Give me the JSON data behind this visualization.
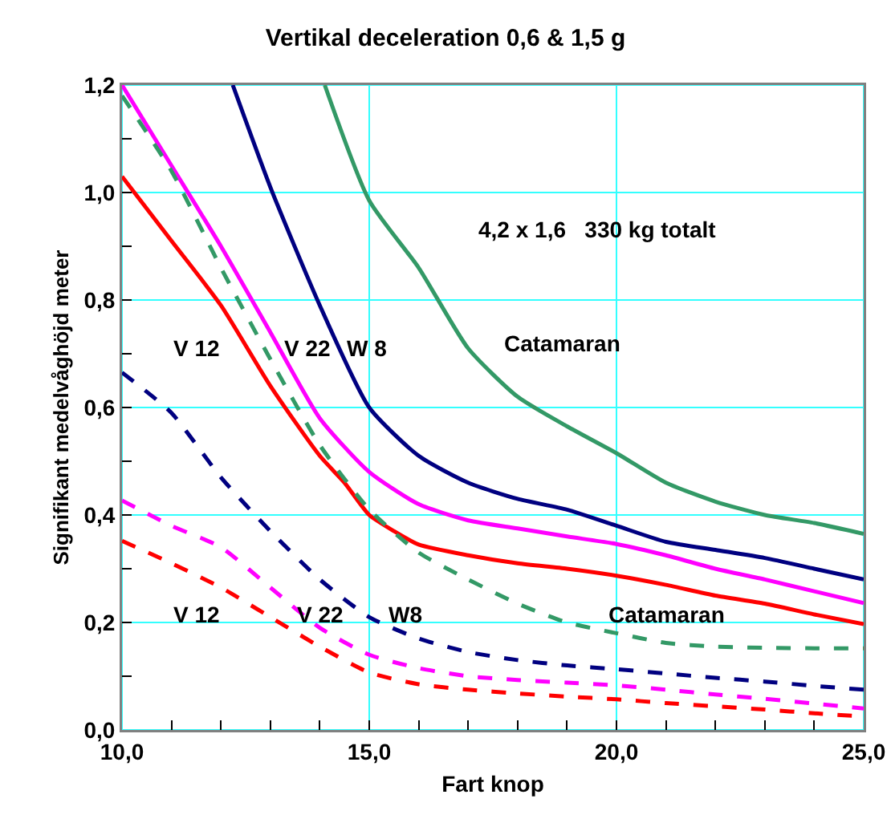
{
  "chart_data": {
    "type": "line",
    "title": "Vertikal deceleration 0,6 & 1,5 g",
    "xlabel": "Fart knop",
    "ylabel": "Signifikant medelvåghöjd meter",
    "xlim": [
      10,
      25
    ],
    "ylim": [
      0,
      1.2
    ],
    "xticks": [
      {
        "value": 10,
        "label": "10,0"
      },
      {
        "value": 11,
        "label": null
      },
      {
        "value": 12,
        "label": null
      },
      {
        "value": 13,
        "label": null
      },
      {
        "value": 14,
        "label": null
      },
      {
        "value": 15,
        "label": "15,0"
      },
      {
        "value": 16,
        "label": null
      },
      {
        "value": 17,
        "label": null
      },
      {
        "value": 18,
        "label": null
      },
      {
        "value": 19,
        "label": null
      },
      {
        "value": 20,
        "label": "20,0"
      },
      {
        "value": 21,
        "label": null
      },
      {
        "value": 22,
        "label": null
      },
      {
        "value": 23,
        "label": null
      },
      {
        "value": 24,
        "label": null
      },
      {
        "value": 25,
        "label": "25,0"
      }
    ],
    "yticks": [
      {
        "value": 0,
        "label": "0,0"
      },
      {
        "value": 0.1,
        "label": null
      },
      {
        "value": 0.2,
        "label": "0,2"
      },
      {
        "value": 0.3,
        "label": null
      },
      {
        "value": 0.4,
        "label": "0,4"
      },
      {
        "value": 0.5,
        "label": null
      },
      {
        "value": 0.6,
        "label": "0,6"
      },
      {
        "value": 0.7,
        "label": null
      },
      {
        "value": 0.8,
        "label": "0,8"
      },
      {
        "value": 0.9,
        "label": null
      },
      {
        "value": 1,
        "label": "1,0"
      },
      {
        "value": 1.1,
        "label": null
      },
      {
        "value": 1.2,
        "label": "1,2"
      }
    ],
    "grid": true,
    "marker": "none",
    "series": [
      {
        "color": "#ff0000",
        "line_style": "solid",
        "x": [
          10,
          11,
          12,
          13,
          14,
          14.5,
          15,
          15.5,
          16,
          17,
          18,
          19,
          20,
          21,
          22,
          23,
          24,
          25
        ],
        "values": [
          1.03,
          0.91,
          0.79,
          0.64,
          0.51,
          0.46,
          0.4,
          0.37,
          0.345,
          0.325,
          0.31,
          0.3,
          0.287,
          0.27,
          0.25,
          0.235,
          0.215,
          0.197
        ]
      },
      {
        "color": "#ff00ff",
        "line_style": "solid",
        "x": [
          10,
          11,
          12,
          13,
          14,
          15,
          16,
          17,
          18,
          19,
          20,
          21,
          22,
          23,
          24,
          25
        ],
        "values": [
          1.2,
          1.05,
          0.9,
          0.74,
          0.58,
          0.48,
          0.42,
          0.39,
          0.375,
          0.36,
          0.346,
          0.325,
          0.3,
          0.28,
          0.258,
          0.236
        ]
      },
      {
        "color": "#000080",
        "line_style": "solid",
        "x": [
          12.24,
          13,
          14,
          15,
          16,
          17,
          18,
          19,
          20,
          21,
          22,
          23,
          24,
          25
        ],
        "values": [
          1.2,
          1.01,
          0.79,
          0.6,
          0.51,
          0.46,
          0.43,
          0.41,
          0.38,
          0.35,
          0.335,
          0.32,
          0.3,
          0.28
        ]
      },
      {
        "color": "#339966",
        "line_style": "solid",
        "x": [
          14.1,
          15,
          16,
          17,
          18,
          19,
          20,
          21,
          22,
          23,
          24,
          25
        ],
        "values": [
          1.2,
          0.985,
          0.86,
          0.71,
          0.62,
          0.565,
          0.515,
          0.46,
          0.425,
          0.4,
          0.385,
          0.365
        ]
      },
      {
        "color": "#339966",
        "line_style": "dashed",
        "x": [
          10,
          11,
          12,
          13,
          14,
          15,
          16,
          17,
          18,
          19,
          20,
          21,
          22,
          23,
          24,
          25
        ],
        "values": [
          1.18,
          1.04,
          0.86,
          0.69,
          0.53,
          0.41,
          0.33,
          0.28,
          0.235,
          0.2,
          0.18,
          0.162,
          0.155,
          0.153,
          0.152,
          0.152
        ]
      },
      {
        "color": "#000080",
        "line_style": "dashed",
        "x": [
          10,
          11,
          12,
          13,
          14,
          15,
          16,
          17,
          18,
          19,
          20,
          21,
          22,
          23,
          24,
          25
        ],
        "values": [
          0.665,
          0.59,
          0.47,
          0.37,
          0.28,
          0.21,
          0.17,
          0.145,
          0.13,
          0.12,
          0.113,
          0.105,
          0.097,
          0.09,
          0.082,
          0.075
        ]
      },
      {
        "color": "#ff00ff",
        "line_style": "dashed",
        "x": [
          10,
          11,
          12,
          13,
          14,
          15,
          16,
          17,
          18,
          19,
          20,
          21,
          22,
          23,
          24,
          25
        ],
        "values": [
          0.427,
          0.38,
          0.34,
          0.265,
          0.19,
          0.14,
          0.115,
          0.1,
          0.093,
          0.088,
          0.083,
          0.075,
          0.066,
          0.058,
          0.049,
          0.04
        ]
      },
      {
        "color": "#ff0000",
        "line_style": "dashed",
        "x": [
          10,
          11,
          12,
          13,
          14,
          15,
          16,
          17,
          18,
          19,
          20,
          21,
          22,
          23,
          24,
          25
        ],
        "values": [
          0.352,
          0.31,
          0.265,
          0.21,
          0.155,
          0.107,
          0.085,
          0.075,
          0.068,
          0.062,
          0.057,
          0.05,
          0.044,
          0.038,
          0.031,
          0.025
        ]
      }
    ],
    "annotations": [
      "V 12",
      "V 22",
      "W 8",
      "Catamaran",
      "4,2 x 1,6   330 kg totalt",
      "V 12",
      "V 22",
      "W8",
      "Catamaran"
    ]
  }
}
